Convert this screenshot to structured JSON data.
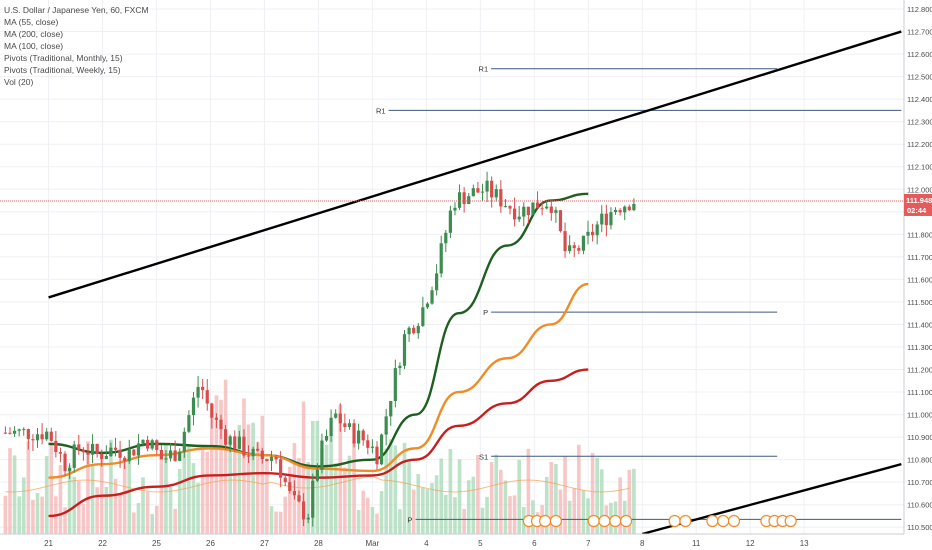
{
  "legend": {
    "title": "U.S. Dollar / Japanese Yen, 60, FXCM",
    "lines": [
      "MA (55, close)",
      "MA (200, close)",
      "MA (100, close)",
      "Pivots (Traditional, Monthly, 15)",
      "Pivots (Traditional, Weekly, 15)",
      "Vol (20)"
    ]
  },
  "price_tag": {
    "price": "111.948",
    "countdown": "02:44"
  },
  "colors": {
    "up": "#3c8d50",
    "down": "#d94c4c",
    "ma55": "#1e5e20",
    "ma200": "#c81e1e",
    "ma100": "#f08c28",
    "pivot": "#3d5a80",
    "trendline": "#000000",
    "vol_up": "#a6d8b4",
    "vol_down": "#f4b4b4"
  },
  "chart_data": {
    "type": "candlestick",
    "title": "U.S. Dollar / Japanese Yen, 60, FXCM",
    "y_ticks": [
      "110.500",
      "110.600",
      "110.700",
      "110.800",
      "110.900",
      "111.000",
      "111.100",
      "111.200",
      "111.300",
      "111.400",
      "111.500",
      "111.600",
      "111.700",
      "111.800",
      "111.900",
      "112.000",
      "112.100",
      "112.200",
      "112.300",
      "112.400",
      "112.500",
      "112.600",
      "112.700",
      "112.800"
    ],
    "ylim": [
      110.47,
      112.84
    ],
    "x_ticks": [
      "21",
      "22",
      "25",
      "26",
      "27",
      "28",
      "Mar",
      "4",
      "5",
      "6",
      "7",
      "8",
      "11",
      "12",
      "13"
    ],
    "x_tick_values": [
      0,
      1,
      2,
      3,
      4,
      5,
      6,
      7,
      8,
      9,
      10,
      11,
      12,
      13,
      14
    ],
    "price_points": [
      [
        0.0,
        110.92
      ],
      [
        0.3,
        110.78
      ],
      [
        0.6,
        110.86
      ],
      [
        0.9,
        110.82
      ],
      [
        1.2,
        110.85
      ],
      [
        1.5,
        110.83
      ],
      [
        1.8,
        110.9
      ],
      [
        2.1,
        110.8
      ],
      [
        2.4,
        110.84
      ],
      [
        2.8,
        111.15
      ],
      [
        3.0,
        111.0
      ],
      [
        3.3,
        110.9
      ],
      [
        3.6,
        110.85
      ],
      [
        3.9,
        110.8
      ],
      [
        4.2,
        110.82
      ],
      [
        4.5,
        110.62
      ],
      [
        4.8,
        110.55
      ],
      [
        5.0,
        110.8
      ],
      [
        5.3,
        111.0
      ],
      [
        5.6,
        110.92
      ],
      [
        5.9,
        110.88
      ],
      [
        6.1,
        110.82
      ],
      [
        6.3,
        111.05
      ],
      [
        6.6,
        111.35
      ],
      [
        6.9,
        111.45
      ],
      [
        7.2,
        111.65
      ],
      [
        7.5,
        111.95
      ],
      [
        7.8,
        111.98
      ],
      [
        8.1,
        112.0
      ],
      [
        8.4,
        111.95
      ],
      [
        8.7,
        111.9
      ],
      [
        9.0,
        111.93
      ],
      [
        9.3,
        111.95
      ],
      [
        9.6,
        111.7
      ],
      [
        9.9,
        111.75
      ],
      [
        10.2,
        111.85
      ],
      [
        10.5,
        111.92
      ],
      [
        10.8,
        111.95
      ]
    ],
    "series": [
      {
        "name": "MA (55, close)",
        "points": [
          [
            0,
            110.87
          ],
          [
            1,
            110.83
          ],
          [
            2,
            110.87
          ],
          [
            3,
            110.86
          ],
          [
            4,
            110.82
          ],
          [
            5,
            110.77
          ],
          [
            6,
            110.8
          ],
          [
            6.8,
            111.0
          ],
          [
            7.6,
            111.45
          ],
          [
            8.5,
            111.75
          ],
          [
            9.3,
            111.95
          ],
          [
            10,
            111.98
          ]
        ]
      },
      {
        "name": "MA (100, close)",
        "points": [
          [
            0,
            110.72
          ],
          [
            1,
            110.78
          ],
          [
            2,
            110.82
          ],
          [
            3,
            110.85
          ],
          [
            4,
            110.82
          ],
          [
            5,
            110.76
          ],
          [
            6,
            110.75
          ],
          [
            6.8,
            110.85
          ],
          [
            7.6,
            111.1
          ],
          [
            8.5,
            111.25
          ],
          [
            9.3,
            111.4
          ],
          [
            10,
            111.58
          ]
        ]
      },
      {
        "name": "MA (200, close)",
        "points": [
          [
            0,
            110.55
          ],
          [
            1,
            110.64
          ],
          [
            2,
            110.68
          ],
          [
            3,
            110.73
          ],
          [
            4,
            110.74
          ],
          [
            5,
            110.72
          ],
          [
            6,
            110.73
          ],
          [
            6.8,
            110.8
          ],
          [
            7.6,
            110.95
          ],
          [
            8.5,
            111.05
          ],
          [
            9.3,
            111.15
          ],
          [
            10,
            111.2
          ]
        ]
      }
    ],
    "trendlines": [
      {
        "points": [
          [
            0,
            111.52
          ],
          [
            15.8,
            112.7
          ]
        ]
      },
      {
        "points": [
          [
            11.0,
            110.47
          ],
          [
            15.8,
            110.78
          ]
        ]
      }
    ],
    "pivots": [
      {
        "label": "R1",
        "value": 112.535,
        "x": [
          8.2,
          13.5
        ]
      },
      {
        "label": "R1",
        "value": 112.35,
        "x": [
          6.3,
          15.8
        ]
      },
      {
        "label": "P",
        "value": 111.455,
        "x": [
          8.2,
          13.5
        ]
      },
      {
        "label": "S1",
        "value": 110.815,
        "x": [
          8.2,
          13.5
        ]
      },
      {
        "label": "P",
        "value": 110.535,
        "x": [
          6.8,
          15.8
        ]
      }
    ],
    "last_price": 111.948,
    "grid": true,
    "axis_position": "right"
  }
}
